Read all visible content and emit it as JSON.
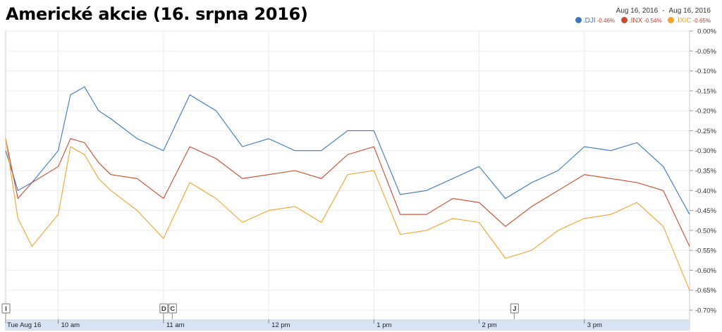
{
  "title": "Americké akcie (16. srpna 2016)",
  "date_range": {
    "from": "Aug 16, 2016",
    "separator": "-",
    "to": "Aug 16, 2016"
  },
  "legend": [
    {
      "symbol": ".DJI",
      "change": "-0.46%",
      "color": "#3a78c0"
    },
    {
      "symbol": ".INX",
      "change": "-0.54%",
      "color": "#c94a2e"
    },
    {
      "symbol": ".IXIC",
      "change": "-0.65%",
      "color": "#f0a42c"
    }
  ],
  "chart_data": {
    "type": "line",
    "title": "Americké akcie (16. srpna 2016)",
    "xlabel": "",
    "ylabel": "",
    "x_tick_labels": [
      "Tue Aug 16",
      "10 am",
      "11 am",
      "12 pm",
      "1 pm",
      "2 pm",
      "3 pm"
    ],
    "x_tick_times": [
      "09:30",
      "10:00",
      "11:00",
      "12:00",
      "13:00",
      "14:00",
      "15:00"
    ],
    "x_range": [
      "09:30",
      "16:00"
    ],
    "y_tick_labels": [
      "0.00%",
      "-0.05%",
      "-0.10%",
      "-0.15%",
      "-0.20%",
      "-0.25%",
      "-0.30%",
      "-0.35%",
      "-0.40%",
      "-0.45%",
      "-0.50%",
      "-0.55%",
      "-0.60%",
      "-0.65%",
      "-0.70%"
    ],
    "ylim": [
      -0.7,
      0.0
    ],
    "y_unit": "%",
    "grid": true,
    "legend_position": "top-right",
    "x": [
      "09:30",
      "09:37",
      "09:45",
      "10:00",
      "10:07",
      "10:15",
      "10:23",
      "10:30",
      "10:45",
      "11:00",
      "11:15",
      "11:30",
      "11:45",
      "12:00",
      "12:15",
      "12:30",
      "12:45",
      "13:00",
      "13:15",
      "13:30",
      "13:45",
      "14:00",
      "14:15",
      "14:30",
      "14:45",
      "15:00",
      "15:15",
      "15:30",
      "15:45",
      "16:00"
    ],
    "series": [
      {
        "name": ".DJI",
        "color": "#3a78c0",
        "values": [
          -0.3,
          -0.4,
          -0.38,
          -0.3,
          -0.16,
          -0.14,
          -0.2,
          -0.22,
          -0.27,
          -0.3,
          -0.16,
          -0.2,
          -0.29,
          -0.27,
          -0.3,
          -0.3,
          -0.25,
          -0.25,
          -0.41,
          -0.4,
          -0.37,
          -0.34,
          -0.42,
          -0.38,
          -0.35,
          -0.29,
          -0.3,
          -0.28,
          -0.34,
          -0.46
        ]
      },
      {
        "name": ".INX",
        "color": "#c94a2e",
        "values": [
          -0.27,
          -0.42,
          -0.38,
          -0.34,
          -0.27,
          -0.28,
          -0.33,
          -0.36,
          -0.37,
          -0.42,
          -0.29,
          -0.32,
          -0.37,
          -0.36,
          -0.35,
          -0.37,
          -0.31,
          -0.29,
          -0.46,
          -0.46,
          -0.42,
          -0.43,
          -0.49,
          -0.44,
          -0.4,
          -0.36,
          -0.37,
          -0.38,
          -0.4,
          -0.54
        ]
      },
      {
        "name": ".IXIC",
        "color": "#f0a42c",
        "values": [
          -0.27,
          -0.47,
          -0.54,
          -0.46,
          -0.29,
          -0.31,
          -0.37,
          -0.4,
          -0.45,
          -0.52,
          -0.38,
          -0.42,
          -0.48,
          -0.45,
          -0.44,
          -0.48,
          -0.36,
          -0.35,
          -0.51,
          -0.5,
          -0.47,
          -0.48,
          -0.57,
          -0.55,
          -0.5,
          -0.47,
          -0.46,
          -0.43,
          -0.49,
          -0.65
        ]
      }
    ],
    "event_markers": [
      {
        "label": "I",
        "time": "09:30"
      },
      {
        "label": "D",
        "time": "11:00"
      },
      {
        "label": "C",
        "time": "11:05"
      },
      {
        "label": "J",
        "time": "14:20"
      }
    ]
  }
}
